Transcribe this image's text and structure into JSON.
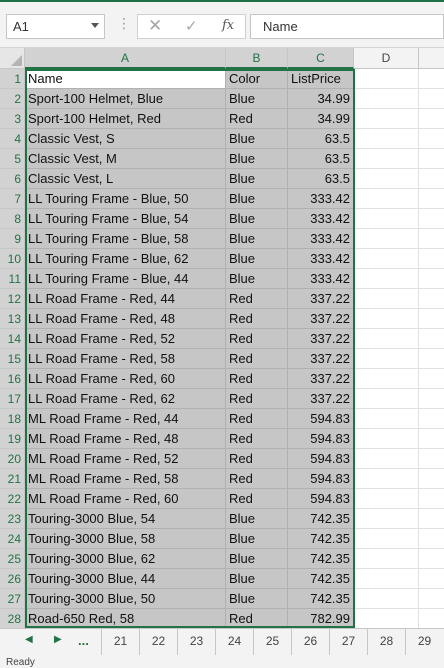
{
  "formula_bar": {
    "name_box": "A1",
    "cancel_icon": "x-icon",
    "enter_icon": "check-icon",
    "function_label": "fx",
    "formula_value": "Name"
  },
  "columns": [
    "A",
    "B",
    "C",
    "D"
  ],
  "rows": [
    {
      "num": "1",
      "name": "Name",
      "color": "Color",
      "price": "ListPrice"
    },
    {
      "num": "2",
      "name": "Sport-100 Helmet, Blue",
      "color": "Blue",
      "price": "34.99"
    },
    {
      "num": "3",
      "name": "Sport-100 Helmet, Red",
      "color": "Red",
      "price": "34.99"
    },
    {
      "num": "4",
      "name": "Classic Vest, S",
      "color": "Blue",
      "price": "63.5"
    },
    {
      "num": "5",
      "name": "Classic Vest, M",
      "color": "Blue",
      "price": "63.5"
    },
    {
      "num": "6",
      "name": "Classic Vest, L",
      "color": "Blue",
      "price": "63.5"
    },
    {
      "num": "7",
      "name": "LL Touring Frame - Blue, 50",
      "color": "Blue",
      "price": "333.42"
    },
    {
      "num": "8",
      "name": "LL Touring Frame - Blue, 54",
      "color": "Blue",
      "price": "333.42"
    },
    {
      "num": "9",
      "name": "LL Touring Frame - Blue, 58",
      "color": "Blue",
      "price": "333.42"
    },
    {
      "num": "10",
      "name": "LL Touring Frame - Blue, 62",
      "color": "Blue",
      "price": "333.42"
    },
    {
      "num": "11",
      "name": "LL Touring Frame - Blue, 44",
      "color": "Blue",
      "price": "333.42"
    },
    {
      "num": "12",
      "name": "LL Road Frame - Red, 44",
      "color": "Red",
      "price": "337.22"
    },
    {
      "num": "13",
      "name": "LL Road Frame - Red, 48",
      "color": "Red",
      "price": "337.22"
    },
    {
      "num": "14",
      "name": "LL Road Frame - Red, 52",
      "color": "Red",
      "price": "337.22"
    },
    {
      "num": "15",
      "name": "LL Road Frame - Red, 58",
      "color": "Red",
      "price": "337.22"
    },
    {
      "num": "16",
      "name": "LL Road Frame - Red, 60",
      "color": "Red",
      "price": "337.22"
    },
    {
      "num": "17",
      "name": "LL Road Frame - Red, 62",
      "color": "Red",
      "price": "337.22"
    },
    {
      "num": "18",
      "name": "ML Road Frame - Red, 44",
      "color": "Red",
      "price": "594.83"
    },
    {
      "num": "19",
      "name": "ML Road Frame - Red, 48",
      "color": "Red",
      "price": "594.83"
    },
    {
      "num": "20",
      "name": "ML Road Frame - Red, 52",
      "color": "Red",
      "price": "594.83"
    },
    {
      "num": "21",
      "name": "ML Road Frame - Red, 58",
      "color": "Red",
      "price": "594.83"
    },
    {
      "num": "22",
      "name": "ML Road Frame - Red, 60",
      "color": "Red",
      "price": "594.83"
    },
    {
      "num": "23",
      "name": "Touring-3000 Blue, 54",
      "color": "Blue",
      "price": "742.35"
    },
    {
      "num": "24",
      "name": "Touring-3000 Blue, 58",
      "color": "Blue",
      "price": "742.35"
    },
    {
      "num": "25",
      "name": "Touring-3000 Blue, 62",
      "color": "Blue",
      "price": "742.35"
    },
    {
      "num": "26",
      "name": "Touring-3000 Blue, 44",
      "color": "Blue",
      "price": "742.35"
    },
    {
      "num": "27",
      "name": "Touring-3000 Blue, 50",
      "color": "Blue",
      "price": "742.35"
    },
    {
      "num": "28",
      "name": "Road-650 Red, 58",
      "color": "Red",
      "price": "782.99"
    }
  ],
  "sheet_tabs": {
    "ellipsis": "...",
    "tabs": [
      "21",
      "22",
      "23",
      "24",
      "25",
      "26",
      "27",
      "28",
      "29"
    ]
  },
  "status": {
    "text": "Ready"
  },
  "colors": {
    "accent": "#217346",
    "selection": "#c6c6c6"
  }
}
